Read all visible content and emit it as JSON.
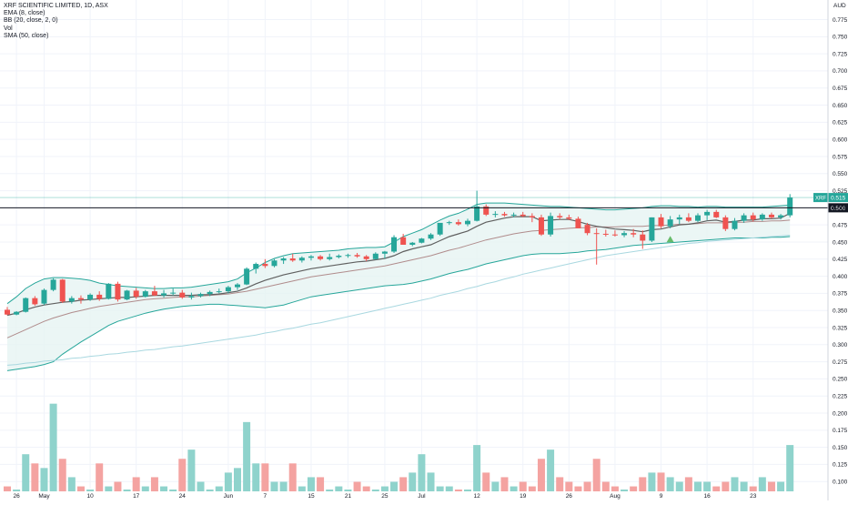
{
  "legend": {
    "title": "XRF SCIENTIFIC LIMITED, 1D, ASX",
    "ema": "EMA (8, close)",
    "bb": "BB (20, close, 2, 0)",
    "vol": "Vol",
    "sma": "SMA (50, close)"
  },
  "currency": "AUD",
  "colors": {
    "up": "#26a69a",
    "down": "#ef5350",
    "vol_up": "#8fd3cc",
    "vol_down": "#f4a3a1",
    "bb_band": "#26a69a",
    "bb_fill": "#e6f4f2",
    "ema": "#606060",
    "bb_basis": "#b08c8c",
    "sma": "#a9d8e0",
    "hline": "#131722"
  },
  "chart_data": {
    "type": "candlestick",
    "y_ticks": [
      "0.100",
      "0.125",
      "0.150",
      "0.175",
      "0.200",
      "0.225",
      "0.250",
      "0.275",
      "0.300",
      "0.325",
      "0.350",
      "0.375",
      "0.400",
      "0.425",
      "0.450",
      "0.475",
      "0.500",
      "0.525",
      "0.550",
      "0.575",
      "0.600",
      "0.625",
      "0.650",
      "0.675",
      "0.700",
      "0.725",
      "0.750",
      "0.775"
    ],
    "x_ticks": [
      {
        "label": "26",
        "i": 1
      },
      {
        "label": "May",
        "i": 4
      },
      {
        "label": "10",
        "i": 9
      },
      {
        "label": "17",
        "i": 14
      },
      {
        "label": "24",
        "i": 19
      },
      {
        "label": "Jun",
        "i": 24
      },
      {
        "label": "7",
        "i": 28
      },
      {
        "label": "15",
        "i": 33
      },
      {
        "label": "21",
        "i": 37
      },
      {
        "label": "25",
        "i": 41
      },
      {
        "label": "Jul",
        "i": 45
      },
      {
        "label": "12",
        "i": 51
      },
      {
        "label": "19",
        "i": 56
      },
      {
        "label": "26",
        "i": 61
      },
      {
        "label": "Aug",
        "i": 66
      },
      {
        "label": "9",
        "i": 71
      },
      {
        "label": "16",
        "i": 76
      },
      {
        "label": "23",
        "i": 81
      }
    ],
    "ylim": [
      0.095,
      0.785
    ],
    "price_tag": {
      "symbol": "XRF",
      "value": "0.515"
    },
    "level": {
      "value": "0.500",
      "price": 0.5
    },
    "candles": [
      [
        0.351,
        0.355,
        0.343,
        0.344,
        0.09
      ],
      [
        0.344,
        0.349,
        0.343,
        0.348,
        0.08
      ],
      [
        0.348,
        0.369,
        0.347,
        0.368,
        0.16
      ],
      [
        0.368,
        0.371,
        0.357,
        0.359,
        0.14
      ],
      [
        0.36,
        0.382,
        0.358,
        0.38,
        0.13
      ],
      [
        0.38,
        0.397,
        0.378,
        0.395,
        0.27
      ],
      [
        0.395,
        0.396,
        0.361,
        0.363,
        0.15
      ],
      [
        0.363,
        0.371,
        0.36,
        0.368,
        0.11
      ],
      [
        0.368,
        0.372,
        0.36,
        0.366,
        0.09
      ],
      [
        0.366,
        0.375,
        0.364,
        0.373,
        0.08
      ],
      [
        0.373,
        0.378,
        0.364,
        0.367,
        0.14
      ],
      [
        0.367,
        0.39,
        0.366,
        0.389,
        0.09
      ],
      [
        0.389,
        0.392,
        0.363,
        0.366,
        0.1
      ],
      [
        0.366,
        0.38,
        0.365,
        0.379,
        0.07
      ],
      [
        0.379,
        0.383,
        0.367,
        0.37,
        0.11
      ],
      [
        0.37,
        0.38,
        0.369,
        0.378,
        0.09
      ],
      [
        0.378,
        0.386,
        0.371,
        0.372,
        0.11
      ],
      [
        0.372,
        0.38,
        0.369,
        0.375,
        0.09
      ],
      [
        0.375,
        0.382,
        0.372,
        0.376,
        0.08
      ],
      [
        0.376,
        0.38,
        0.367,
        0.369,
        0.15
      ],
      [
        0.369,
        0.376,
        0.366,
        0.371,
        0.17
      ],
      [
        0.371,
        0.376,
        0.369,
        0.374,
        0.1
      ],
      [
        0.374,
        0.379,
        0.371,
        0.377,
        0.08
      ],
      [
        0.377,
        0.382,
        0.375,
        0.378,
        0.09
      ],
      [
        0.378,
        0.386,
        0.375,
        0.384,
        0.12
      ],
      [
        0.384,
        0.39,
        0.38,
        0.388,
        0.13
      ],
      [
        0.388,
        0.413,
        0.387,
        0.411,
        0.23
      ],
      [
        0.411,
        0.42,
        0.404,
        0.418,
        0.14
      ],
      [
        0.418,
        0.425,
        0.412,
        0.415,
        0.14
      ],
      [
        0.415,
        0.425,
        0.413,
        0.423,
        0.1
      ],
      [
        0.423,
        0.428,
        0.418,
        0.426,
        0.1
      ],
      [
        0.426,
        0.433,
        0.421,
        0.423,
        0.14
      ],
      [
        0.423,
        0.429,
        0.42,
        0.427,
        0.09
      ],
      [
        0.427,
        0.431,
        0.423,
        0.429,
        0.11
      ],
      [
        0.429,
        0.431,
        0.423,
        0.425,
        0.11
      ],
      [
        0.425,
        0.433,
        0.423,
        0.428,
        0.08
      ],
      [
        0.428,
        0.432,
        0.426,
        0.43,
        0.09
      ],
      [
        0.43,
        0.433,
        0.427,
        0.431,
        0.08
      ],
      [
        0.431,
        0.434,
        0.427,
        0.429,
        0.1
      ],
      [
        0.429,
        0.431,
        0.422,
        0.425,
        0.09
      ],
      [
        0.425,
        0.435,
        0.424,
        0.433,
        0.08
      ],
      [
        0.433,
        0.437,
        0.426,
        0.436,
        0.09
      ],
      [
        0.436,
        0.46,
        0.434,
        0.457,
        0.1
      ],
      [
        0.457,
        0.462,
        0.446,
        0.446,
        0.11
      ],
      [
        0.446,
        0.45,
        0.444,
        0.449,
        0.12
      ],
      [
        0.449,
        0.456,
        0.448,
        0.455,
        0.16
      ],
      [
        0.455,
        0.463,
        0.453,
        0.461,
        0.12
      ],
      [
        0.461,
        0.472,
        0.459,
        0.478,
        0.09
      ],
      [
        0.478,
        0.481,
        0.475,
        0.479,
        0.09
      ],
      [
        0.479,
        0.483,
        0.474,
        0.476,
        0.08
      ],
      [
        0.476,
        0.484,
        0.473,
        0.481,
        0.08
      ],
      [
        0.481,
        0.525,
        0.48,
        0.502,
        0.18
      ],
      [
        0.502,
        0.505,
        0.488,
        0.49,
        0.12
      ],
      [
        0.49,
        0.495,
        0.486,
        0.491,
        0.1
      ],
      [
        0.491,
        0.494,
        0.487,
        0.489,
        0.11
      ],
      [
        0.489,
        0.493,
        0.486,
        0.49,
        0.09
      ],
      [
        0.49,
        0.494,
        0.486,
        0.488,
        0.1
      ],
      [
        0.488,
        0.492,
        0.479,
        0.486,
        0.09
      ],
      [
        0.486,
        0.49,
        0.459,
        0.461,
        0.15
      ],
      [
        0.461,
        0.493,
        0.458,
        0.488,
        0.17
      ],
      [
        0.488,
        0.492,
        0.483,
        0.486,
        0.11
      ],
      [
        0.486,
        0.49,
        0.482,
        0.484,
        0.1
      ],
      [
        0.484,
        0.487,
        0.474,
        0.47,
        0.09
      ],
      [
        0.475,
        0.478,
        0.46,
        0.463,
        0.1
      ],
      [
        0.463,
        0.47,
        0.417,
        0.462,
        0.15
      ],
      [
        0.462,
        0.468,
        0.458,
        0.461,
        0.1
      ],
      [
        0.461,
        0.467,
        0.458,
        0.46,
        0.09
      ],
      [
        0.46,
        0.466,
        0.457,
        0.463,
        0.08
      ],
      [
        0.463,
        0.469,
        0.457,
        0.461,
        0.09
      ],
      [
        0.461,
        0.467,
        0.44,
        0.452,
        0.11
      ],
      [
        0.452,
        0.486,
        0.45,
        0.486,
        0.12
      ],
      [
        0.486,
        0.491,
        0.47,
        0.473,
        0.12
      ],
      [
        0.473,
        0.488,
        0.47,
        0.483,
        0.11
      ],
      [
        0.483,
        0.49,
        0.476,
        0.486,
        0.1
      ],
      [
        0.486,
        0.492,
        0.479,
        0.481,
        0.11
      ],
      [
        0.481,
        0.492,
        0.479,
        0.489,
        0.1
      ],
      [
        0.489,
        0.497,
        0.482,
        0.494,
        0.1
      ],
      [
        0.494,
        0.497,
        0.485,
        0.486,
        0.09
      ],
      [
        0.486,
        0.489,
        0.466,
        0.469,
        0.1
      ],
      [
        0.469,
        0.485,
        0.467,
        0.481,
        0.11
      ],
      [
        0.481,
        0.492,
        0.478,
        0.489,
        0.1
      ],
      [
        0.489,
        0.493,
        0.48,
        0.483,
        0.09
      ],
      [
        0.483,
        0.492,
        0.481,
        0.49,
        0.11
      ],
      [
        0.49,
        0.493,
        0.484,
        0.486,
        0.1
      ],
      [
        0.486,
        0.491,
        0.483,
        0.489,
        0.1
      ],
      [
        0.489,
        0.52,
        0.486,
        0.515,
        0.18
      ]
    ],
    "ema": [
      0.343,
      0.346,
      0.351,
      0.355,
      0.358,
      0.36,
      0.362,
      0.363,
      0.365,
      0.366,
      0.367,
      0.368,
      0.369,
      0.369,
      0.37,
      0.371,
      0.372,
      0.372,
      0.372,
      0.372,
      0.372,
      0.373,
      0.373,
      0.374,
      0.376,
      0.378,
      0.383,
      0.389,
      0.394,
      0.398,
      0.402,
      0.405,
      0.408,
      0.411,
      0.413,
      0.415,
      0.417,
      0.419,
      0.421,
      0.422,
      0.424,
      0.426,
      0.43,
      0.436,
      0.44,
      0.443,
      0.446,
      0.452,
      0.458,
      0.462,
      0.466,
      0.473,
      0.479,
      0.482,
      0.485,
      0.487,
      0.487,
      0.487,
      0.481,
      0.482,
      0.483,
      0.483,
      0.48,
      0.476,
      0.473,
      0.471,
      0.469,
      0.468,
      0.467,
      0.465,
      0.468,
      0.469,
      0.472,
      0.475,
      0.476,
      0.478,
      0.481,
      0.482,
      0.479,
      0.48,
      0.482,
      0.482,
      0.484,
      0.484,
      0.485,
      0.492
    ],
    "bb_upper": [
      0.36,
      0.37,
      0.382,
      0.39,
      0.396,
      0.398,
      0.398,
      0.397,
      0.396,
      0.394,
      0.39,
      0.388,
      0.386,
      0.385,
      0.384,
      0.383,
      0.382,
      0.382,
      0.383,
      0.383,
      0.384,
      0.386,
      0.388,
      0.39,
      0.392,
      0.396,
      0.405,
      0.412,
      0.42,
      0.426,
      0.43,
      0.433,
      0.434,
      0.435,
      0.436,
      0.437,
      0.438,
      0.44,
      0.441,
      0.442,
      0.442,
      0.443,
      0.45,
      0.458,
      0.463,
      0.468,
      0.475,
      0.482,
      0.488,
      0.492,
      0.498,
      0.505,
      0.507,
      0.507,
      0.507,
      0.506,
      0.505,
      0.504,
      0.503,
      0.502,
      0.502,
      0.501,
      0.5,
      0.499,
      0.498,
      0.497,
      0.497,
      0.498,
      0.499,
      0.5,
      0.502,
      0.503,
      0.503,
      0.502,
      0.502,
      0.501,
      0.502,
      0.502,
      0.501,
      0.501,
      0.501,
      0.501,
      0.501,
      0.502,
      0.503,
      0.504
    ],
    "bb_basis": [
      0.31,
      0.316,
      0.322,
      0.328,
      0.334,
      0.339,
      0.343,
      0.347,
      0.35,
      0.353,
      0.356,
      0.358,
      0.36,
      0.362,
      0.364,
      0.366,
      0.367,
      0.368,
      0.369,
      0.37,
      0.37,
      0.371,
      0.372,
      0.373,
      0.374,
      0.376,
      0.378,
      0.381,
      0.384,
      0.387,
      0.39,
      0.393,
      0.396,
      0.399,
      0.401,
      0.403,
      0.405,
      0.407,
      0.409,
      0.411,
      0.413,
      0.415,
      0.418,
      0.421,
      0.424,
      0.427,
      0.43,
      0.434,
      0.438,
      0.441,
      0.445,
      0.449,
      0.453,
      0.456,
      0.459,
      0.462,
      0.464,
      0.466,
      0.467,
      0.468,
      0.469,
      0.47,
      0.471,
      0.471,
      0.472,
      0.472,
      0.472,
      0.473,
      0.473,
      0.473,
      0.474,
      0.474,
      0.475,
      0.476,
      0.476,
      0.477,
      0.478,
      0.478,
      0.478,
      0.479,
      0.479,
      0.48,
      0.48,
      0.481,
      0.481,
      0.482
    ],
    "bb_lower": [
      0.262,
      0.264,
      0.266,
      0.268,
      0.271,
      0.275,
      0.286,
      0.295,
      0.304,
      0.312,
      0.32,
      0.328,
      0.334,
      0.338,
      0.342,
      0.346,
      0.349,
      0.352,
      0.354,
      0.356,
      0.357,
      0.358,
      0.359,
      0.359,
      0.358,
      0.357,
      0.356,
      0.355,
      0.354,
      0.356,
      0.358,
      0.362,
      0.366,
      0.37,
      0.372,
      0.374,
      0.376,
      0.378,
      0.38,
      0.382,
      0.384,
      0.386,
      0.387,
      0.388,
      0.39,
      0.393,
      0.396,
      0.4,
      0.404,
      0.407,
      0.41,
      0.414,
      0.418,
      0.421,
      0.424,
      0.427,
      0.43,
      0.432,
      0.433,
      0.433,
      0.433,
      0.434,
      0.435,
      0.437,
      0.438,
      0.439,
      0.441,
      0.443,
      0.445,
      0.446,
      0.447,
      0.448,
      0.449,
      0.45,
      0.451,
      0.452,
      0.453,
      0.454,
      0.455,
      0.456,
      0.456,
      0.456,
      0.456,
      0.457,
      0.457,
      0.458
    ],
    "sma": [
      0.27,
      0.271,
      0.273,
      0.274,
      0.276,
      0.277,
      0.278,
      0.28,
      0.281,
      0.283,
      0.284,
      0.286,
      0.287,
      0.289,
      0.29,
      0.292,
      0.293,
      0.295,
      0.297,
      0.298,
      0.3,
      0.302,
      0.304,
      0.306,
      0.308,
      0.31,
      0.312,
      0.314,
      0.317,
      0.319,
      0.322,
      0.324,
      0.327,
      0.33,
      0.332,
      0.335,
      0.338,
      0.341,
      0.344,
      0.347,
      0.35,
      0.353,
      0.356,
      0.359,
      0.362,
      0.365,
      0.368,
      0.372,
      0.375,
      0.378,
      0.382,
      0.385,
      0.389,
      0.392,
      0.396,
      0.399,
      0.403,
      0.406,
      0.409,
      0.412,
      0.415,
      0.418,
      0.421,
      0.424,
      0.427,
      0.43,
      0.432,
      0.434,
      0.436,
      0.438,
      0.44,
      0.442,
      0.444,
      0.446,
      0.448,
      0.449,
      0.451,
      0.452,
      0.453,
      0.454,
      0.455,
      0.456,
      0.457,
      0.458,
      0.459,
      0.46
    ],
    "signal": {
      "i": 72,
      "price": 0.455
    }
  }
}
